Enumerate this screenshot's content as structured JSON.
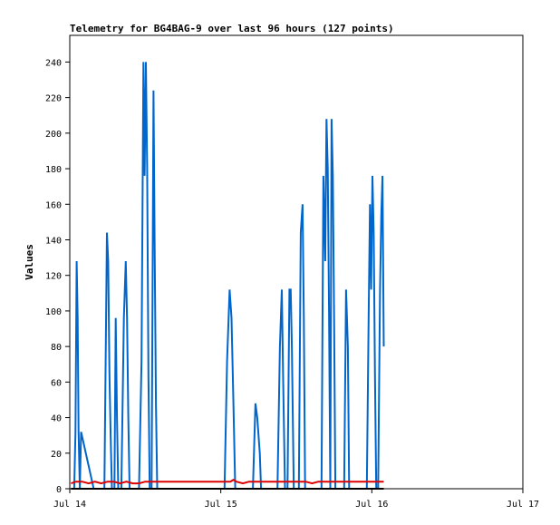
{
  "chart_data": {
    "type": "line",
    "title": "Telemetry for BG4BAG-9 over last 96 hours (127 points)",
    "xlabel": "",
    "ylabel": "Values",
    "x_unit": "hours since Jul 14 00:00",
    "xlim": [
      0,
      72
    ],
    "ylim": [
      0,
      255
    ],
    "yticks": [
      0,
      20,
      40,
      60,
      80,
      100,
      120,
      140,
      160,
      180,
      200,
      220,
      240
    ],
    "xticks": [
      {
        "label": "Jul 14",
        "x": 0
      },
      {
        "label": "Jul 15",
        "x": 24
      },
      {
        "label": "Jul 16",
        "x": 48
      },
      {
        "label": "Jul 17",
        "x": 72
      }
    ],
    "grid": false,
    "series": [
      {
        "name": "",
        "color": "#0066cc",
        "points": [
          [
            0.2,
            0
          ],
          [
            0.7,
            0
          ],
          [
            0.9,
            32
          ],
          [
            1.1,
            128
          ],
          [
            1.25,
            96
          ],
          [
            1.4,
            32
          ],
          [
            1.6,
            0
          ],
          [
            1.8,
            32
          ],
          [
            3.8,
            0
          ],
          [
            5.5,
            0
          ],
          [
            5.9,
            144
          ],
          [
            6.1,
            128
          ],
          [
            6.3,
            64
          ],
          [
            6.5,
            30
          ],
          [
            6.7,
            0
          ],
          [
            7.1,
            0
          ],
          [
            7.3,
            96
          ],
          [
            7.5,
            40
          ],
          [
            7.7,
            0
          ],
          [
            8.2,
            0
          ],
          [
            8.6,
            96
          ],
          [
            8.9,
            128
          ],
          [
            9.1,
            96
          ],
          [
            9.3,
            40
          ],
          [
            9.5,
            0
          ],
          [
            11.0,
            0
          ],
          [
            11.4,
            72
          ],
          [
            11.7,
            240
          ],
          [
            11.9,
            176
          ],
          [
            12.1,
            240
          ],
          [
            12.3,
            180
          ],
          [
            12.5,
            64
          ],
          [
            12.7,
            0
          ],
          [
            13.0,
            0
          ],
          [
            13.3,
            224
          ],
          [
            13.5,
            128
          ],
          [
            13.7,
            48
          ],
          [
            13.9,
            0
          ],
          [
            24.6,
            0
          ],
          [
            25.0,
            72
          ],
          [
            25.4,
            112
          ],
          [
            25.7,
            96
          ],
          [
            26.0,
            48
          ],
          [
            26.3,
            0
          ],
          [
            29.1,
            0
          ],
          [
            29.5,
            48
          ],
          [
            29.8,
            40
          ],
          [
            30.2,
            20
          ],
          [
            30.4,
            0
          ],
          [
            33.0,
            0
          ],
          [
            33.4,
            80
          ],
          [
            33.7,
            112
          ],
          [
            33.9,
            64
          ],
          [
            34.2,
            0
          ],
          [
            34.6,
            0
          ],
          [
            34.9,
            112
          ],
          [
            35.1,
            112
          ],
          [
            35.3,
            80
          ],
          [
            35.6,
            0
          ],
          [
            36.4,
            0
          ],
          [
            36.7,
            144
          ],
          [
            37.0,
            160
          ],
          [
            37.2,
            96
          ],
          [
            37.4,
            0
          ],
          [
            40.0,
            0
          ],
          [
            40.3,
            176
          ],
          [
            40.6,
            128
          ],
          [
            40.8,
            208
          ],
          [
            41.0,
            180
          ],
          [
            41.2,
            100
          ],
          [
            41.4,
            0
          ],
          [
            41.6,
            208
          ],
          [
            41.8,
            176
          ],
          [
            42.0,
            96
          ],
          [
            42.2,
            0
          ],
          [
            43.6,
            0
          ],
          [
            43.9,
            112
          ],
          [
            44.2,
            80
          ],
          [
            44.4,
            0
          ],
          [
            47.2,
            0
          ],
          [
            47.5,
            100
          ],
          [
            47.7,
            160
          ],
          [
            47.9,
            112
          ],
          [
            48.1,
            176
          ],
          [
            48.3,
            144
          ],
          [
            48.5,
            64
          ],
          [
            48.7,
            0
          ],
          [
            49.0,
            0
          ],
          [
            49.3,
            112
          ],
          [
            49.5,
            154
          ],
          [
            49.7,
            176
          ],
          [
            49.9,
            80
          ]
        ]
      },
      {
        "name": "",
        "color": "#dd0000",
        "points": [
          [
            0.2,
            3
          ],
          [
            1.0,
            4
          ],
          [
            2.0,
            4
          ],
          [
            3.0,
            3
          ],
          [
            4.0,
            4
          ],
          [
            5.0,
            3
          ],
          [
            6.0,
            4
          ],
          [
            7.0,
            4
          ],
          [
            8.0,
            3
          ],
          [
            9.0,
            4
          ],
          [
            10.0,
            3
          ],
          [
            11.0,
            3
          ],
          [
            12.0,
            4
          ],
          [
            13.0,
            4
          ],
          [
            14.0,
            4
          ],
          [
            16.0,
            4
          ],
          [
            18.0,
            4
          ],
          [
            20.0,
            4
          ],
          [
            22.0,
            4
          ],
          [
            24.0,
            4
          ],
          [
            25.5,
            4
          ],
          [
            26.0,
            5
          ],
          [
            26.5,
            4
          ],
          [
            27.5,
            3
          ],
          [
            28.5,
            4
          ],
          [
            30.0,
            4
          ],
          [
            32.0,
            4
          ],
          [
            34.0,
            4
          ],
          [
            36.0,
            4
          ],
          [
            37.5,
            4
          ],
          [
            38.5,
            3
          ],
          [
            39.5,
            4
          ],
          [
            41.0,
            4
          ],
          [
            43.0,
            4
          ],
          [
            45.0,
            4
          ],
          [
            47.0,
            4
          ],
          [
            49.9,
            4
          ]
        ]
      },
      {
        "name": "",
        "color": "#000000",
        "points": [
          [
            0.2,
            0
          ],
          [
            49.9,
            0
          ]
        ]
      }
    ]
  }
}
